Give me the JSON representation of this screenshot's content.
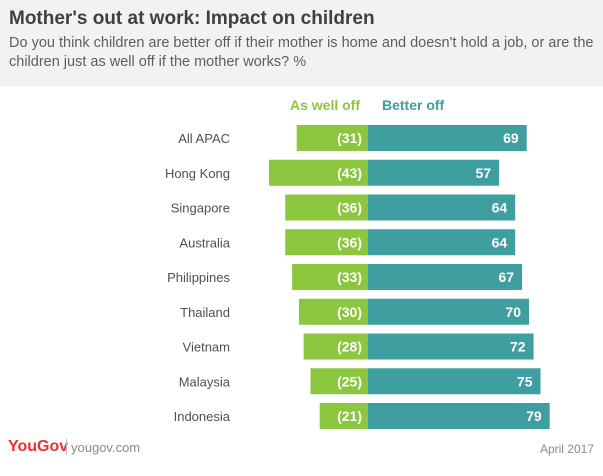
{
  "header": {
    "title": "Mother's out at work: Impact on children",
    "subtitle": "Do you think children are better off if their mother is home and doesn't hold a job, or are the children just as well off if the mother works?  %"
  },
  "chart_data": {
    "type": "bar",
    "orientation": "horizontal-diverging",
    "title": "Mother's out at work: Impact on children",
    "xlabel": "",
    "ylabel": "",
    "categories": [
      "All APAC",
      "Hong Kong",
      "Singapore",
      "Australia",
      "Philippines",
      "Thailand",
      "Vietnam",
      "Malaysia",
      "Indonesia"
    ],
    "series": [
      {
        "name": "As well off",
        "values": [
          31,
          43,
          36,
          36,
          33,
          30,
          28,
          25,
          21
        ],
        "color": "#8cc63e",
        "label_format": "parentheses"
      },
      {
        "name": "Better off",
        "values": [
          69,
          57,
          64,
          64,
          67,
          70,
          72,
          75,
          79
        ],
        "color": "#3f9ea0",
        "label_format": "plain"
      }
    ],
    "legend_placement": "top",
    "grid": false
  },
  "footer": {
    "logo": "YouGov",
    "url": "yougov.com",
    "date": "April 2017"
  },
  "colors": {
    "left_series": "#8cc63e",
    "right_series": "#3f9ea0",
    "brand": "#e8322e"
  }
}
